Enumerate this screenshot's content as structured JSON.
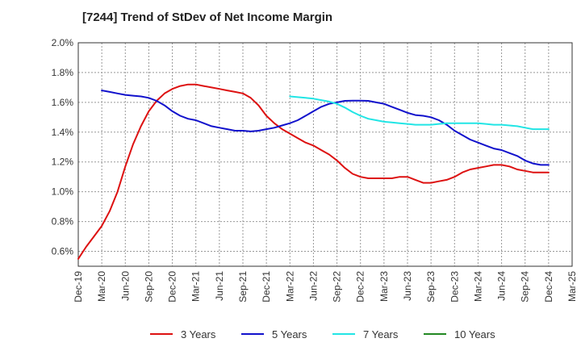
{
  "chart_data": {
    "type": "line",
    "title": "[7244]  Trend of StDev of Net Income Margin",
    "xlabel": "",
    "ylabel": "",
    "grid": true,
    "legend_position": "bottom",
    "x_ticks": [
      "Dec-19",
      "Mar-20",
      "Jun-20",
      "Sep-20",
      "Dec-20",
      "Mar-21",
      "Jun-21",
      "Sep-21",
      "Dec-21",
      "Mar-22",
      "Jun-22",
      "Sep-22",
      "Dec-22",
      "Mar-23",
      "Jun-23",
      "Sep-23",
      "Dec-23",
      "Mar-24",
      "Jun-24",
      "Sep-24",
      "Dec-24",
      "Mar-25"
    ],
    "y_ticks": [
      "0.6%",
      "0.8%",
      "1.0%",
      "1.2%",
      "1.4%",
      "1.6%",
      "1.8%",
      "2.0%"
    ],
    "ylim": [
      0.5,
      2.0
    ],
    "y_unit": "%",
    "series": [
      {
        "name": "3 Years",
        "color": "#dd1111",
        "points": [
          [
            "Dec-19",
            0.55
          ],
          [
            "Jan-20",
            0.63
          ],
          [
            "Feb-20",
            0.7
          ],
          [
            "Mar-20",
            0.77
          ],
          [
            "Apr-20",
            0.87
          ],
          [
            "May-20",
            1.0
          ],
          [
            "Jun-20",
            1.17
          ],
          [
            "Jul-20",
            1.32
          ],
          [
            "Aug-20",
            1.44
          ],
          [
            "Sep-20",
            1.54
          ],
          [
            "Oct-20",
            1.61
          ],
          [
            "Nov-20",
            1.66
          ],
          [
            "Dec-20",
            1.69
          ],
          [
            "Jan-21",
            1.71
          ],
          [
            "Feb-21",
            1.72
          ],
          [
            "Mar-21",
            1.72
          ],
          [
            "Apr-21",
            1.71
          ],
          [
            "May-21",
            1.7
          ],
          [
            "Jun-21",
            1.69
          ],
          [
            "Jul-21",
            1.68
          ],
          [
            "Aug-21",
            1.67
          ],
          [
            "Sep-21",
            1.66
          ],
          [
            "Oct-21",
            1.63
          ],
          [
            "Nov-21",
            1.58
          ],
          [
            "Dec-21",
            1.51
          ],
          [
            "Jan-22",
            1.46
          ],
          [
            "Feb-22",
            1.42
          ],
          [
            "Mar-22",
            1.39
          ],
          [
            "Apr-22",
            1.36
          ],
          [
            "May-22",
            1.33
          ],
          [
            "Jun-22",
            1.31
          ],
          [
            "Jul-22",
            1.28
          ],
          [
            "Aug-22",
            1.25
          ],
          [
            "Sep-22",
            1.21
          ],
          [
            "Oct-22",
            1.16
          ],
          [
            "Nov-22",
            1.12
          ],
          [
            "Dec-22",
            1.1
          ],
          [
            "Jan-23",
            1.09
          ],
          [
            "Feb-23",
            1.09
          ],
          [
            "Mar-23",
            1.09
          ],
          [
            "Apr-23",
            1.09
          ],
          [
            "May-23",
            1.1
          ],
          [
            "Jun-23",
            1.1
          ],
          [
            "Jul-23",
            1.08
          ],
          [
            "Aug-23",
            1.06
          ],
          [
            "Sep-23",
            1.06
          ],
          [
            "Oct-23",
            1.07
          ],
          [
            "Nov-23",
            1.08
          ],
          [
            "Dec-23",
            1.1
          ],
          [
            "Jan-24",
            1.13
          ],
          [
            "Feb-24",
            1.15
          ],
          [
            "Mar-24",
            1.16
          ],
          [
            "Apr-24",
            1.17
          ],
          [
            "May-24",
            1.18
          ],
          [
            "Jun-24",
            1.18
          ],
          [
            "Jul-24",
            1.17
          ],
          [
            "Aug-24",
            1.15
          ],
          [
            "Sep-24",
            1.14
          ],
          [
            "Oct-24",
            1.13
          ],
          [
            "Nov-24",
            1.13
          ],
          [
            "Dec-24",
            1.13
          ]
        ]
      },
      {
        "name": "5 Years",
        "color": "#1111cc",
        "points": [
          [
            "Mar-20",
            1.68
          ],
          [
            "Apr-20",
            1.67
          ],
          [
            "May-20",
            1.66
          ],
          [
            "Jun-20",
            1.65
          ],
          [
            "Jul-20",
            1.645
          ],
          [
            "Aug-20",
            1.64
          ],
          [
            "Sep-20",
            1.63
          ],
          [
            "Oct-20",
            1.61
          ],
          [
            "Nov-20",
            1.58
          ],
          [
            "Dec-20",
            1.54
          ],
          [
            "Jan-21",
            1.51
          ],
          [
            "Feb-21",
            1.49
          ],
          [
            "Mar-21",
            1.48
          ],
          [
            "Apr-21",
            1.46
          ],
          [
            "May-21",
            1.44
          ],
          [
            "Jun-21",
            1.43
          ],
          [
            "Jul-21",
            1.42
          ],
          [
            "Aug-21",
            1.41
          ],
          [
            "Sep-21",
            1.41
          ],
          [
            "Oct-21",
            1.405
          ],
          [
            "Nov-21",
            1.41
          ],
          [
            "Dec-21",
            1.42
          ],
          [
            "Jan-22",
            1.43
          ],
          [
            "Feb-22",
            1.445
          ],
          [
            "Mar-22",
            1.46
          ],
          [
            "Apr-22",
            1.48
          ],
          [
            "May-22",
            1.51
          ],
          [
            "Jun-22",
            1.54
          ],
          [
            "Jul-22",
            1.57
          ],
          [
            "Aug-22",
            1.59
          ],
          [
            "Sep-22",
            1.6
          ],
          [
            "Oct-22",
            1.61
          ],
          [
            "Nov-22",
            1.612
          ],
          [
            "Dec-22",
            1.612
          ],
          [
            "Jan-23",
            1.61
          ],
          [
            "Feb-23",
            1.6
          ],
          [
            "Mar-23",
            1.59
          ],
          [
            "Apr-23",
            1.57
          ],
          [
            "May-23",
            1.55
          ],
          [
            "Jun-23",
            1.53
          ],
          [
            "Jul-23",
            1.515
          ],
          [
            "Aug-23",
            1.51
          ],
          [
            "Sep-23",
            1.5
          ],
          [
            "Oct-23",
            1.48
          ],
          [
            "Nov-23",
            1.45
          ],
          [
            "Dec-23",
            1.41
          ],
          [
            "Jan-24",
            1.38
          ],
          [
            "Feb-24",
            1.35
          ],
          [
            "Mar-24",
            1.33
          ],
          [
            "Apr-24",
            1.31
          ],
          [
            "May-24",
            1.29
          ],
          [
            "Jun-24",
            1.28
          ],
          [
            "Jul-24",
            1.26
          ],
          [
            "Aug-24",
            1.24
          ],
          [
            "Sep-24",
            1.21
          ],
          [
            "Oct-24",
            1.19
          ],
          [
            "Nov-24",
            1.18
          ],
          [
            "Dec-24",
            1.18
          ]
        ]
      },
      {
        "name": "7 Years",
        "color": "#22e5e5",
        "points": [
          [
            "Mar-22",
            1.64
          ],
          [
            "Apr-22",
            1.635
          ],
          [
            "May-22",
            1.63
          ],
          [
            "Jun-22",
            1.625
          ],
          [
            "Jul-22",
            1.615
          ],
          [
            "Aug-22",
            1.605
          ],
          [
            "Sep-22",
            1.59
          ],
          [
            "Oct-22",
            1.565
          ],
          [
            "Nov-22",
            1.535
          ],
          [
            "Dec-22",
            1.51
          ],
          [
            "Jan-23",
            1.49
          ],
          [
            "Feb-23",
            1.48
          ],
          [
            "Mar-23",
            1.47
          ],
          [
            "Apr-23",
            1.465
          ],
          [
            "May-23",
            1.46
          ],
          [
            "Jun-23",
            1.455
          ],
          [
            "Jul-23",
            1.45
          ],
          [
            "Aug-23",
            1.45
          ],
          [
            "Sep-23",
            1.45
          ],
          [
            "Oct-23",
            1.455
          ],
          [
            "Nov-23",
            1.46
          ],
          [
            "Dec-23",
            1.46
          ],
          [
            "Jan-24",
            1.46
          ],
          [
            "Feb-24",
            1.46
          ],
          [
            "Mar-24",
            1.46
          ],
          [
            "Apr-24",
            1.455
          ],
          [
            "May-24",
            1.45
          ],
          [
            "Jun-24",
            1.45
          ],
          [
            "Jul-24",
            1.445
          ],
          [
            "Aug-24",
            1.44
          ],
          [
            "Sep-24",
            1.43
          ],
          [
            "Oct-24",
            1.42
          ],
          [
            "Nov-24",
            1.42
          ],
          [
            "Dec-24",
            1.42
          ]
        ]
      },
      {
        "name": "10 Years",
        "color": "#228822",
        "points": []
      }
    ]
  }
}
